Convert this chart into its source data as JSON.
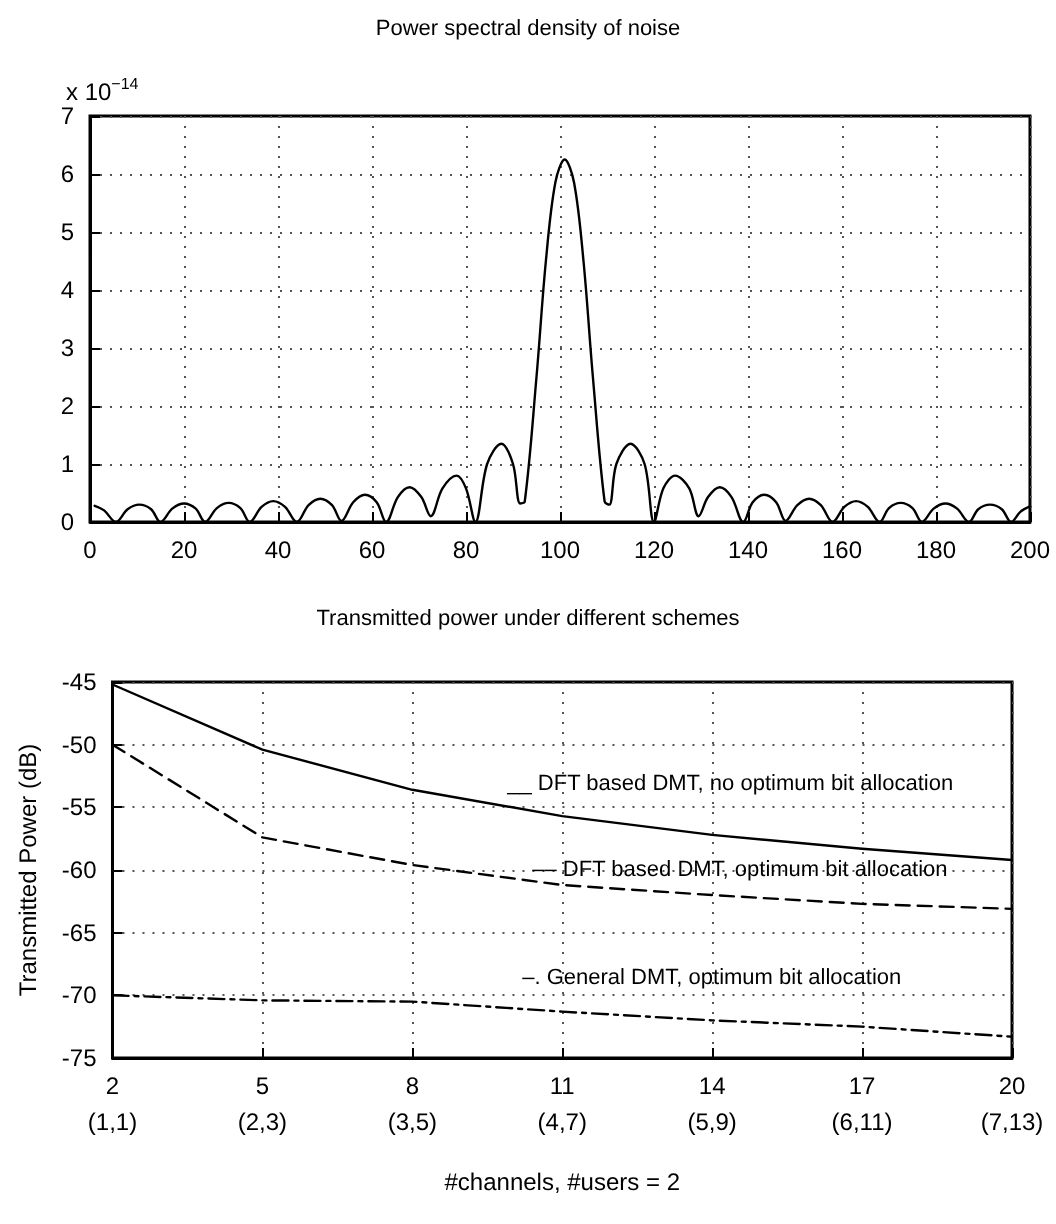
{
  "chart_data": [
    {
      "type": "line",
      "title": "Power spectral density of noise",
      "ylabel": "x 10$^{−14}$",
      "x": [
        1,
        3,
        5.5,
        8,
        10.5,
        13,
        15,
        17.5,
        20,
        22.5,
        24.5,
        27,
        29.5,
        32,
        34,
        36.5,
        39,
        41.5,
        44,
        46.5,
        49,
        51.5,
        53.5,
        56,
        58.5,
        61,
        63,
        65.5,
        68,
        70.5,
        72.5,
        75,
        78,
        80,
        82,
        84.5,
        87.5,
        90,
        91.5,
        92.5,
        95,
        97,
        99,
        101,
        103,
        105,
        107,
        109.5,
        110.5,
        112,
        115,
        118,
        120,
        122,
        124.5,
        127.5,
        129.5,
        131.5,
        134,
        136.5,
        139,
        141,
        143.5,
        146,
        148,
        150.5,
        153,
        155.5,
        158,
        160.5,
        163,
        165.5,
        168,
        170,
        172.5,
        175,
        177,
        179.5,
        182,
        184.5,
        187,
        189,
        191.5,
        194,
        196,
        198,
        200
      ],
      "series": [
        {
          "color": "#000000",
          "values": [
            0.28,
            0.2,
            0,
            0.22,
            0.3,
            0.22,
            0,
            0.23,
            0.32,
            0.23,
            0,
            0.24,
            0.33,
            0.24,
            0,
            0.26,
            0.36,
            0.26,
            0,
            0.29,
            0.4,
            0.29,
            0.02,
            0.34,
            0.47,
            0.34,
            0,
            0.43,
            0.6,
            0.43,
            0.1,
            0.58,
            0.8,
            0.58,
            0,
            1.0,
            1.35,
            1.0,
            0.32,
            0.35,
            2.5,
            4.5,
            5.85,
            6.25,
            5.85,
            4.5,
            2.5,
            0.35,
            0.3,
            1.0,
            1.35,
            1.0,
            0,
            0.58,
            0.8,
            0.58,
            0.1,
            0.43,
            0.6,
            0.43,
            0,
            0.34,
            0.47,
            0.34,
            0.02,
            0.29,
            0.4,
            0.29,
            0,
            0.26,
            0.36,
            0.26,
            0,
            0.24,
            0.33,
            0.24,
            0,
            0.23,
            0.32,
            0.23,
            0,
            0.22,
            0.3,
            0.22,
            0,
            0.18,
            0.27
          ]
        }
      ],
      "xlim": [
        0,
        200
      ],
      "xticks": [
        0,
        20,
        40,
        60,
        80,
        100,
        120,
        140,
        160,
        180,
        200
      ],
      "ylim": [
        0,
        7
      ],
      "yticks": [
        0,
        1,
        2,
        3,
        4,
        5,
        6,
        7
      ],
      "grid": true,
      "legend": false,
      "marker": "none",
      "line_style": "solid"
    },
    {
      "type": "line",
      "title": "Transmitted power under different schemes",
      "xlabel": "#channels, #users = 2",
      "ylabel": "Transmitted Power (dB)",
      "x": [
        2,
        5,
        8,
        11,
        14,
        17,
        20
      ],
      "series": [
        {
          "name": "__ DFT based DMT, no optimum bit allocation",
          "color": "#000000",
          "line_style": "solid",
          "values": [
            -45.2,
            -50.4,
            -53.6,
            -55.7,
            -57.2,
            -58.3,
            -59.2
          ]
        },
        {
          "name": "–– DFT based DMT, optimum bit allocation",
          "color": "#000000",
          "line_style": "dashed",
          "values": [
            -50,
            -57.4,
            -59.6,
            -61.2,
            -62,
            -62.7,
            -63.1
          ]
        },
        {
          "name": "–. General DMT, optimum bit allocation",
          "color": "#000000",
          "line_style": "dashdot",
          "values": [
            -70,
            -70.4,
            -70.5,
            -71.3,
            -72,
            -72.5,
            -73.3
          ]
        }
      ],
      "xlim": [
        2,
        20
      ],
      "xticks": [
        2,
        5,
        8,
        11,
        14,
        17,
        20
      ],
      "annotations": [
        "(1,1)",
        "(2,3)",
        "(3,5)",
        "(4,7)",
        "(5,9)",
        "(6,11)",
        "(7,13)"
      ],
      "ylim": [
        -75,
        -45
      ],
      "yticks": [
        -75,
        -70,
        -65,
        -60,
        -55,
        -50,
        -45
      ],
      "grid": true,
      "legend": false,
      "marker": "none"
    }
  ]
}
